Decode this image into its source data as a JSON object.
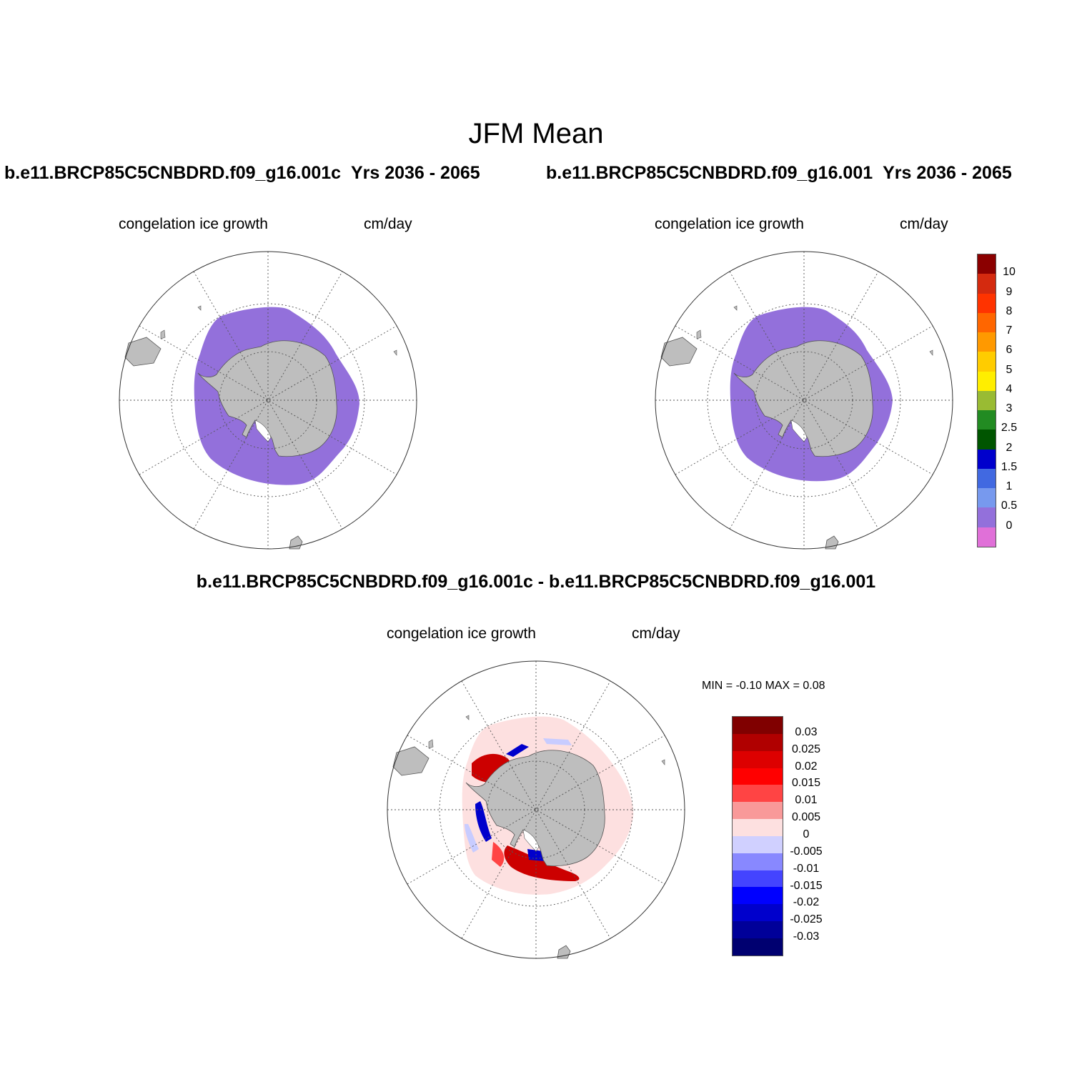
{
  "main_title": "JFM Mean",
  "panels": {
    "left": {
      "case": "b.e11.BRCP85C5CNBDRD.f09_g16.001c",
      "years": "Yrs 2036 - 2065",
      "variable": "congelation ice growth",
      "units": "cm/day"
    },
    "right": {
      "case": "b.e11.BRCP85C5CNBDRD.f09_g16.001",
      "years": "Yrs 2036 - 2065",
      "variable": "congelation ice growth",
      "units": "cm/day"
    },
    "diff": {
      "title": "b.e11.BRCP85C5CNBDRD.f09_g16.001c - b.e11.BRCP85C5CNBDRD.f09_g16.001",
      "variable": "congelation ice growth",
      "units": "cm/day",
      "minmax": "MIN =  -0.10 MAX =   0.08"
    }
  },
  "colorbar_abs": {
    "labels": [
      "10",
      "9",
      "8",
      "7",
      "6",
      "5",
      "4",
      "3",
      "2.5",
      "2",
      "1.5",
      "1",
      "0.5",
      "0"
    ],
    "colors": [
      "#8b0000",
      "#d42a0f",
      "#ff3300",
      "#ff6600",
      "#ff9900",
      "#ffcc00",
      "#ffee00",
      "#99bb33",
      "#228b22",
      "#005500",
      "#0000cc",
      "#4169e1",
      "#7799ee",
      "#9370db",
      "#e070d8"
    ]
  },
  "colorbar_diff": {
    "labels": [
      "0.03",
      "0.025",
      "0.02",
      "0.015",
      "0.01",
      "0.005",
      "0",
      "-0.005",
      "-0.01",
      "-0.015",
      "-0.02",
      "-0.025",
      "-0.03"
    ],
    "colors": [
      "#800000",
      "#b00000",
      "#dd0000",
      "#ff0000",
      "#ff4444",
      "#f99999",
      "#fde0e0",
      "#d0d0ff",
      "#8888ff",
      "#4444ff",
      "#0000ff",
      "#0000cc",
      "#000099",
      "#000070"
    ]
  },
  "colors": {
    "ice": "#9370db",
    "land": "#bebebe",
    "pos_strong": "#cc0000",
    "pos_weak": "#fde0e0",
    "neg_strong": "#0000cc",
    "neg_weak": "#c8ccff"
  }
}
